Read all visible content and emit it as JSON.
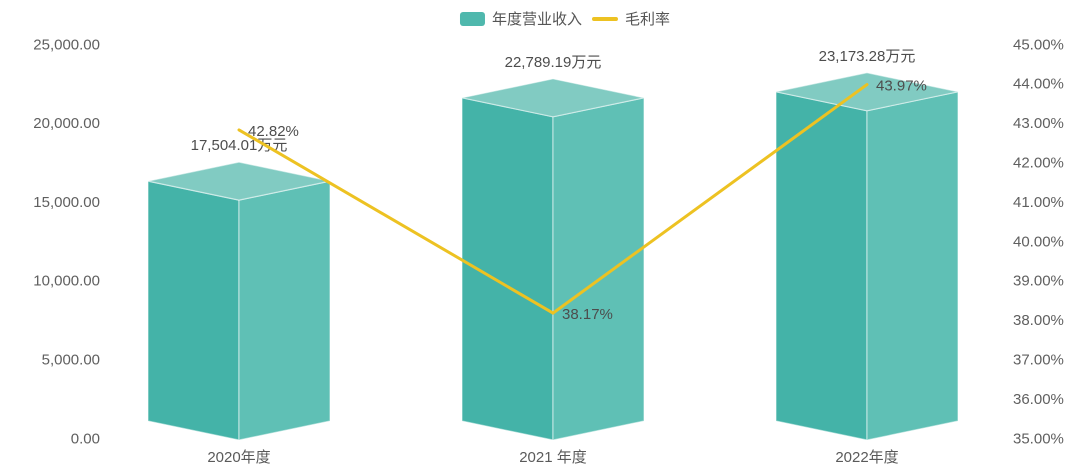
{
  "chart_data": {
    "type": "bar",
    "title": "",
    "legend": {
      "position": "top",
      "items": [
        {
          "label": "年度营业收入",
          "marker": "round-rect",
          "color": "#4fb8ad"
        },
        {
          "label": "毛利率",
          "marker": "line",
          "color": "#edc222"
        }
      ]
    },
    "categories": [
      "2020年度",
      "2021 年度",
      "2022年度"
    ],
    "series": [
      {
        "name": "年度营业收入",
        "kind": "bar3d",
        "axis": "left",
        "unit": "万元",
        "values": [
          17504.01,
          22789.19,
          23173.28
        ],
        "data_labels": [
          "17,504.01万元",
          "22,789.19万元",
          "23,173.28万元"
        ],
        "colors": {
          "top_face": "#81cbc2",
          "left_face": "#44b3a8",
          "right_face": "#5fc0b5",
          "edge": "rgba(255,255,255,0.5)"
        }
      },
      {
        "name": "毛利率",
        "kind": "line",
        "axis": "right",
        "values": [
          42.82,
          38.17,
          43.97
        ],
        "data_labels": [
          "42.82%",
          "38.17%",
          "43.97%"
        ],
        "color": "#edc222"
      }
    ],
    "left_axis": {
      "min": 0,
      "max": 25000,
      "tick_step": 5000,
      "ticks": [
        "25,000.00",
        "20,000.00",
        "15,000.00",
        "10,000.00",
        "5,000.00",
        "0.00"
      ]
    },
    "right_axis": {
      "min": 35,
      "max": 45,
      "tick_step": 1,
      "ticks": [
        "45.00%",
        "44.00%",
        "43.00%",
        "42.00%",
        "41.00%",
        "40.00%",
        "39.00%",
        "38.00%",
        "37.00%",
        "36.00%",
        "35.00%"
      ]
    },
    "grid_lines": false,
    "background": "#ffffff",
    "text_color": "#5a5a5a"
  }
}
